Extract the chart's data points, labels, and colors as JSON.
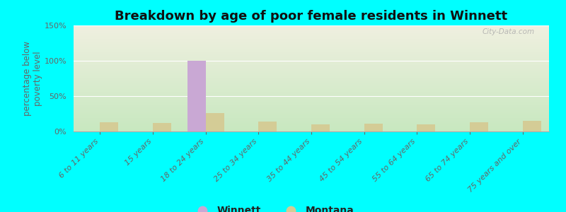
{
  "title": "Breakdown by age of poor female residents in Winnett",
  "categories": [
    "6 to 11 years",
    "15 years",
    "18 to 24 years",
    "25 to 34 years",
    "35 to 44 years",
    "45 to 54 years",
    "55 to 64 years",
    "65 to 74 years",
    "75 years and over"
  ],
  "winnett_values": [
    0,
    0,
    100,
    0,
    0,
    0,
    0,
    0,
    0
  ],
  "montana_values": [
    13,
    12,
    26,
    14,
    10,
    11,
    10,
    13,
    15
  ],
  "winnett_color": "#c9a8d4",
  "montana_color": "#d4cc96",
  "ylabel": "percentage below\npoverty level",
  "ylim": [
    0,
    150
  ],
  "yticks": [
    0,
    50,
    100,
    150
  ],
  "ytick_labels": [
    "0%",
    "50%",
    "100%",
    "150%"
  ],
  "background_color": "#00ffff",
  "plot_bg_top": "#f0f0e0",
  "plot_bg_bottom": "#c8e8c0",
  "bar_width": 0.35,
  "title_fontsize": 13,
  "axis_label_fontsize": 8.5,
  "tick_fontsize": 8,
  "watermark": "City-Data.com"
}
